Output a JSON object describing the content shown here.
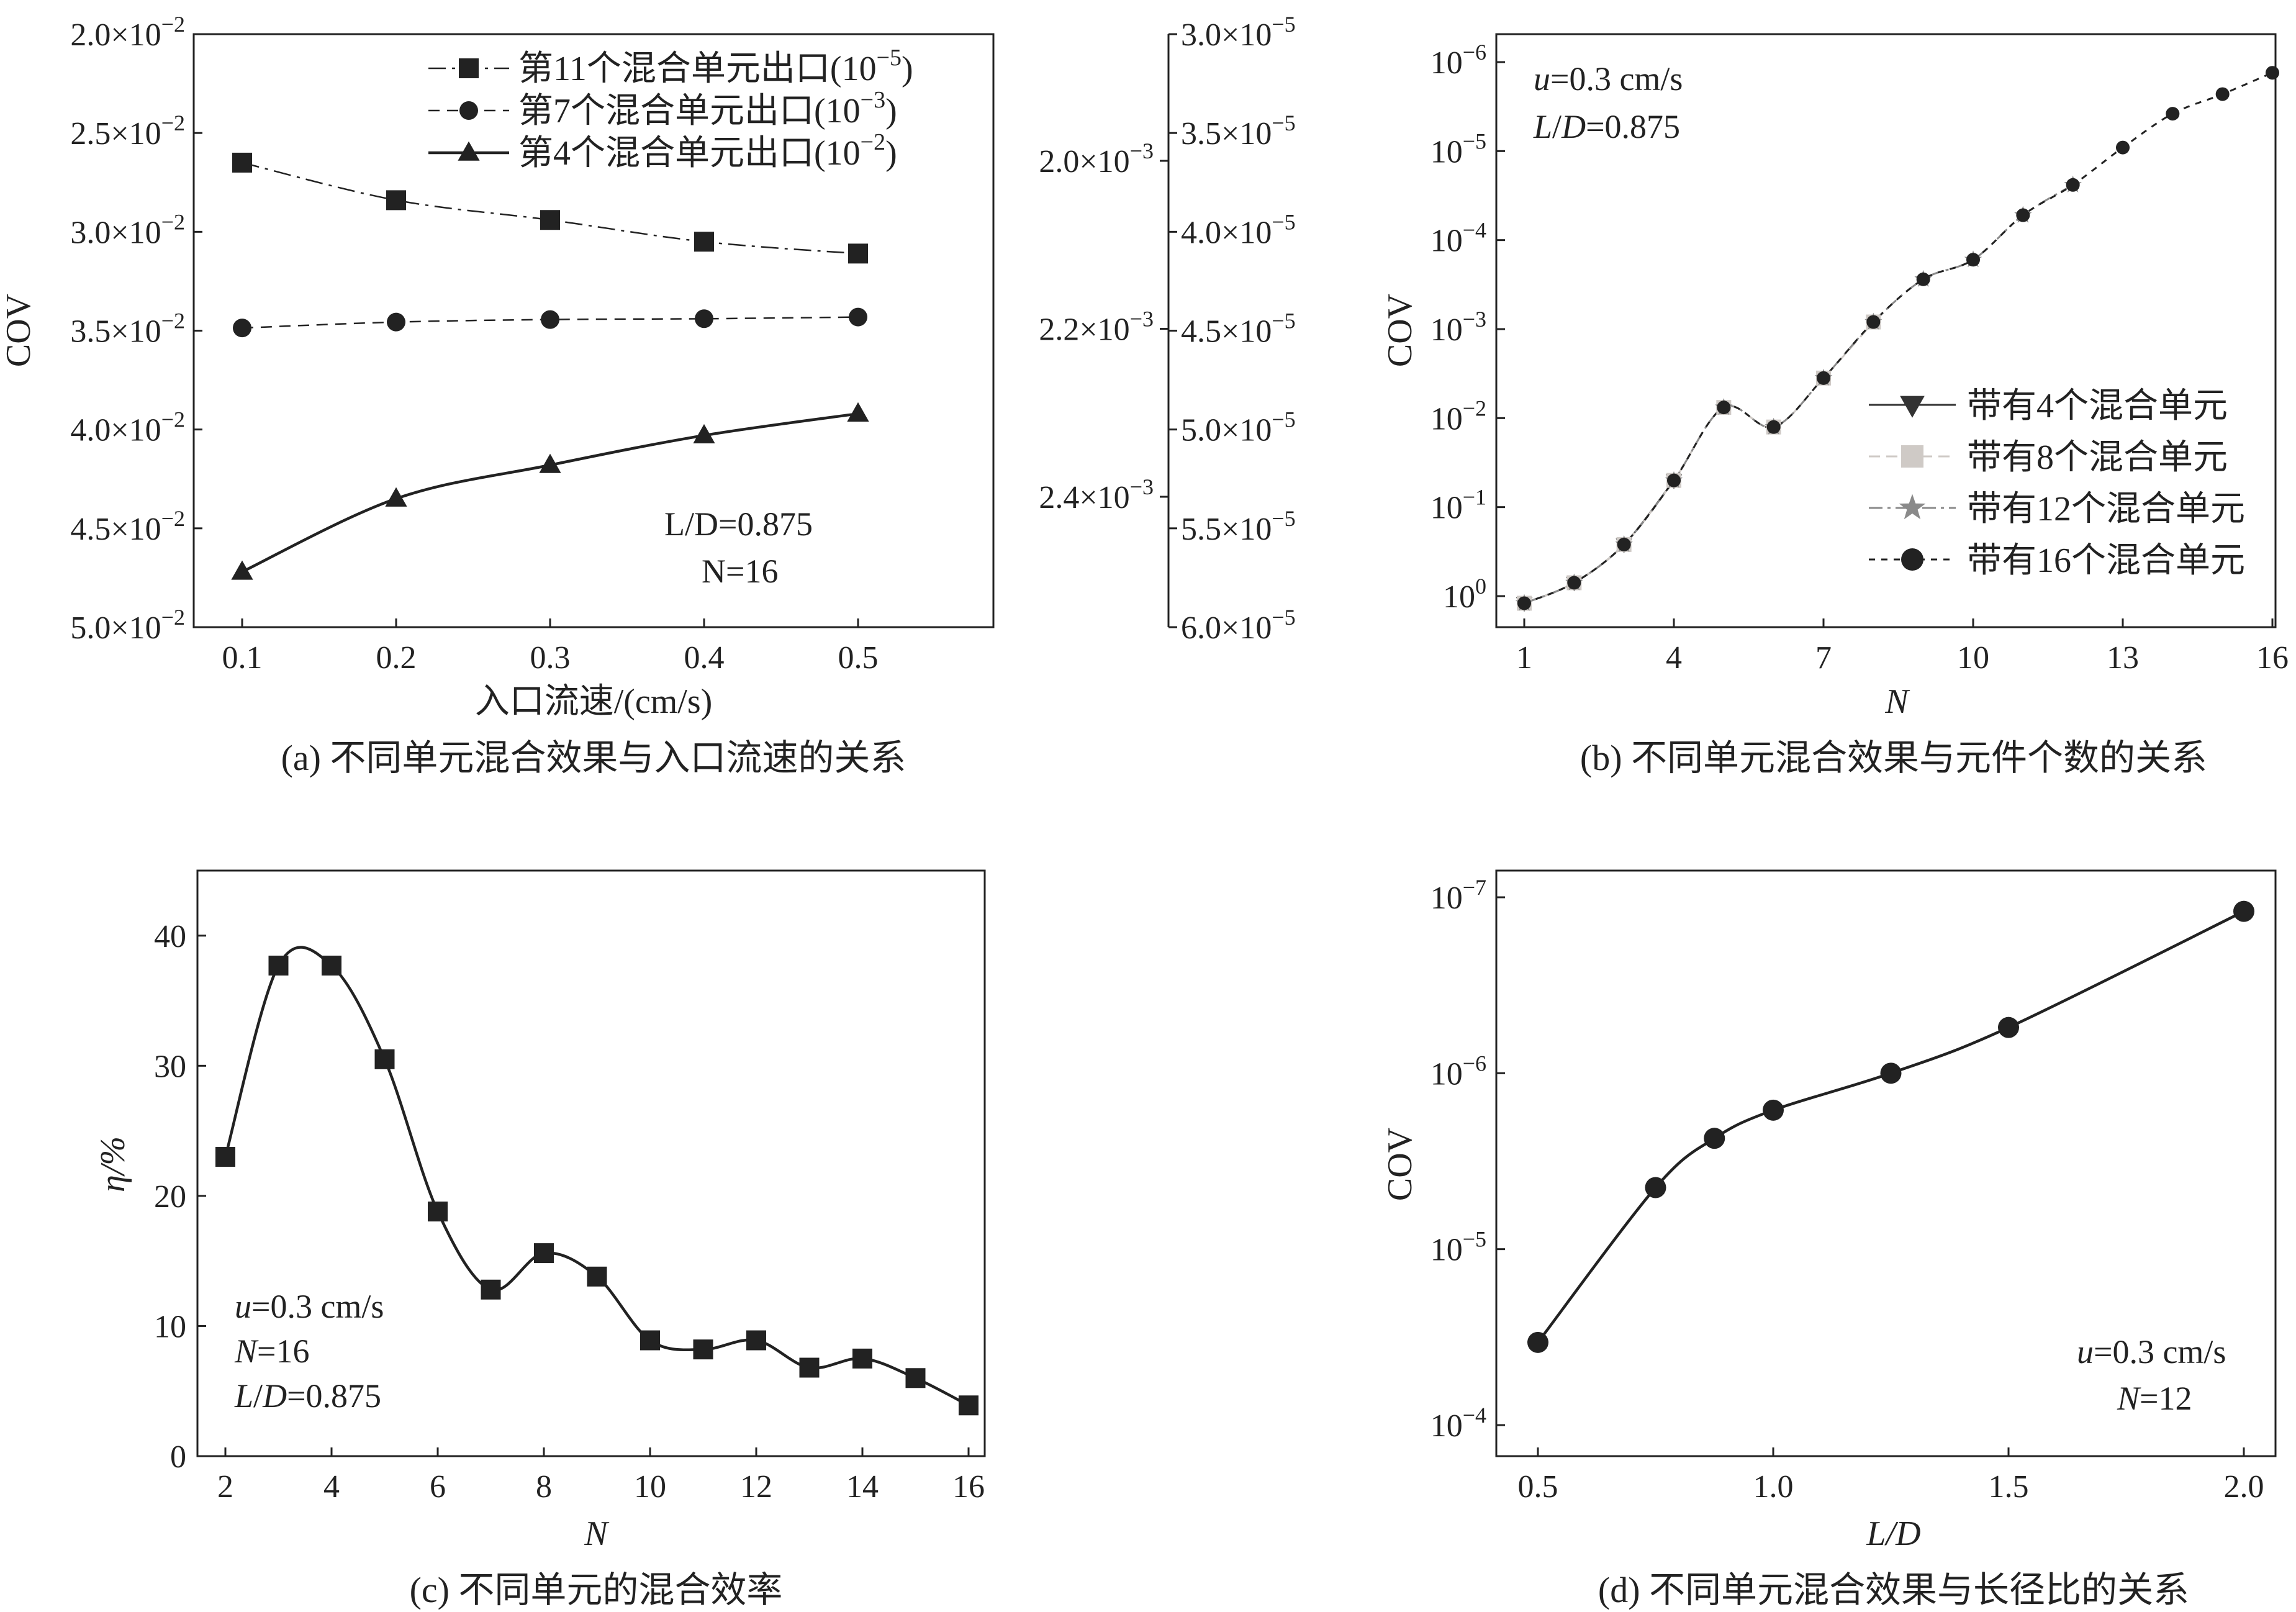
{
  "chart_data": [
    {
      "id": "a",
      "type": "line",
      "caption": "(a) 不同单元混合效果与入口流速的关系",
      "xlabel": "入口流速/(cm/s)",
      "ylabel": "COV",
      "x_tick_labels": [
        "0.1",
        "0.2",
        "0.3",
        "0.4",
        "0.5"
      ],
      "y_left_ticks": [
        {
          "base": "2.0×10",
          "exp": "−2"
        },
        {
          "base": "2.5×10",
          "exp": "−2"
        },
        {
          "base": "3.0×10",
          "exp": "−2"
        },
        {
          "base": "3.5×10",
          "exp": "−2"
        },
        {
          "base": "4.0×10",
          "exp": "−2"
        },
        {
          "base": "4.5×10",
          "exp": "−2"
        },
        {
          "base": "5.0×10",
          "exp": "−2"
        }
      ],
      "y_mid_ticks": [
        {
          "base": "2.0×10",
          "exp": "−3"
        },
        {
          "base": "2.2×10",
          "exp": "−3"
        },
        {
          "base": "2.4×10",
          "exp": "−3"
        }
      ],
      "y_right_ticks": [
        {
          "base": "3.0×10",
          "exp": "−5"
        },
        {
          "base": "3.5×10",
          "exp": "−5"
        },
        {
          "base": "4.0×10",
          "exp": "−5"
        },
        {
          "base": "4.5×10",
          "exp": "−5"
        },
        {
          "base": "5.0×10",
          "exp": "−5"
        },
        {
          "base": "5.5×10",
          "exp": "−5"
        },
        {
          "base": "6.0×10",
          "exp": "−5"
        }
      ],
      "annotations": {
        "ld": "L/D=0.875",
        "n": "N=16"
      },
      "x": [
        0.1,
        0.2,
        0.3,
        0.4,
        0.5
      ],
      "series": [
        {
          "name": "第11个混合单元出口(10",
          "exp": "−5",
          "suffix": ")",
          "axis": "right",
          "marker": "square",
          "dash": "long-dash-dot",
          "values": [
            3.65e-05,
            3.84e-05,
            3.94e-05,
            4.05e-05,
            4.11e-05
          ]
        },
        {
          "name": "第7个混合单元出口(10",
          "exp": "−3",
          "suffix": ")",
          "axis": "middle",
          "marker": "circle",
          "dash": "dashed",
          "values": [
            0.002199,
            0.002192,
            0.002189,
            0.002188,
            0.002186
          ]
        },
        {
          "name": "第4个混合单元出口(10",
          "exp": "−2",
          "suffix": ")",
          "axis": "left",
          "marker": "triangle",
          "dash": "solid",
          "values": [
            0.0472,
            0.0435,
            0.0418,
            0.0403,
            0.0392
          ]
        }
      ]
    },
    {
      "id": "b",
      "type": "line",
      "caption": "(b) 不同单元混合效果与元件个数的关系",
      "xlabel": "N",
      "ylabel": "COV",
      "x_ticks": [
        "1",
        "4",
        "7",
        "10",
        "13",
        "16"
      ],
      "y_ticks": [
        {
          "base": "10",
          "exp": "−6"
        },
        {
          "base": "10",
          "exp": "−5"
        },
        {
          "base": "10",
          "exp": "−4"
        },
        {
          "base": "10",
          "exp": "−3"
        },
        {
          "base": "10",
          "exp": "−2"
        },
        {
          "base": "10",
          "exp": "−1"
        },
        {
          "base": "10",
          "exp": "0"
        }
      ],
      "annotations": {
        "u": "u=0.3 cm/s",
        "ld": "L/D=0.875"
      },
      "series": [
        {
          "name": "带有4个混合单元",
          "marker": "triangle-down",
          "color": "#333333",
          "x": [
            1,
            2,
            3,
            4
          ],
          "log10_values": [
            0.08,
            -0.15,
            -0.58,
            -1.3
          ]
        },
        {
          "name": "带有8个混合单元",
          "marker": "square",
          "color": "#cfcac6",
          "x": [
            1,
            2,
            3,
            4,
            5,
            6,
            7,
            8
          ],
          "log10_values": [
            0.08,
            -0.15,
            -0.58,
            -1.3,
            -2.12,
            -1.9,
            -2.45,
            -3.08
          ]
        },
        {
          "name": "带有12个混合单元",
          "marker": "star",
          "color": "#8a8a8a",
          "x": [
            1,
            2,
            3,
            4,
            5,
            6,
            7,
            8,
            9,
            10,
            11,
            12
          ],
          "log10_values": [
            0.08,
            -0.15,
            -0.58,
            -1.3,
            -2.12,
            -1.9,
            -2.45,
            -3.08,
            -3.56,
            -3.78,
            -4.28,
            -4.62
          ]
        },
        {
          "name": "带有16个混合单元",
          "marker": "circle",
          "color": "#222222",
          "x": [
            1,
            2,
            3,
            4,
            5,
            6,
            7,
            8,
            9,
            10,
            11,
            12,
            13,
            14,
            15,
            16
          ],
          "log10_values": [
            0.08,
            -0.15,
            -0.58,
            -1.3,
            -2.12,
            -1.9,
            -2.45,
            -3.08,
            -3.56,
            -3.78,
            -4.28,
            -4.62,
            -5.04,
            -5.42,
            -5.64,
            -5.88
          ]
        }
      ]
    },
    {
      "id": "c",
      "type": "line",
      "caption": "(c) 不同单元的混合效率",
      "xlabel": "N",
      "ylabel": "η/%",
      "x_ticks": [
        "2",
        "4",
        "6",
        "8",
        "10",
        "12",
        "14",
        "16"
      ],
      "y_ticks": [
        "0",
        "10",
        "20",
        "30",
        "40"
      ],
      "ylim": [
        0,
        45
      ],
      "annotations": {
        "u": "u=0.3 cm/s",
        "n": "N=16",
        "ld": "L/D=0.875"
      },
      "x": [
        2,
        3,
        4,
        5,
        6,
        7,
        8,
        9,
        10,
        11,
        12,
        13,
        14,
        15,
        16
      ],
      "values": [
        23.0,
        37.7,
        37.7,
        30.5,
        18.8,
        12.8,
        15.6,
        13.8,
        8.9,
        8.2,
        8.9,
        6.8,
        7.5,
        6.0,
        3.9
      ]
    },
    {
      "id": "d",
      "type": "line",
      "caption": "(d) 不同单元混合效果与长径比的关系",
      "xlabel": "L/D",
      "ylabel": "COV",
      "x_ticks": [
        "0.5",
        "1.0",
        "1.5",
        "2.0"
      ],
      "y_ticks": [
        {
          "base": "10",
          "exp": "−7"
        },
        {
          "base": "10",
          "exp": "−6"
        },
        {
          "base": "10",
          "exp": "−5"
        },
        {
          "base": "10",
          "exp": "−4"
        }
      ],
      "annotations": {
        "u": "u=0.3 cm/s",
        "n": "N=12"
      },
      "x": [
        0.5,
        0.75,
        0.875,
        1.0,
        1.25,
        1.5,
        2.0
      ],
      "log10_values": [
        -4.47,
        -5.35,
        -5.63,
        -5.79,
        -6.0,
        -6.26,
        -6.92
      ]
    }
  ]
}
